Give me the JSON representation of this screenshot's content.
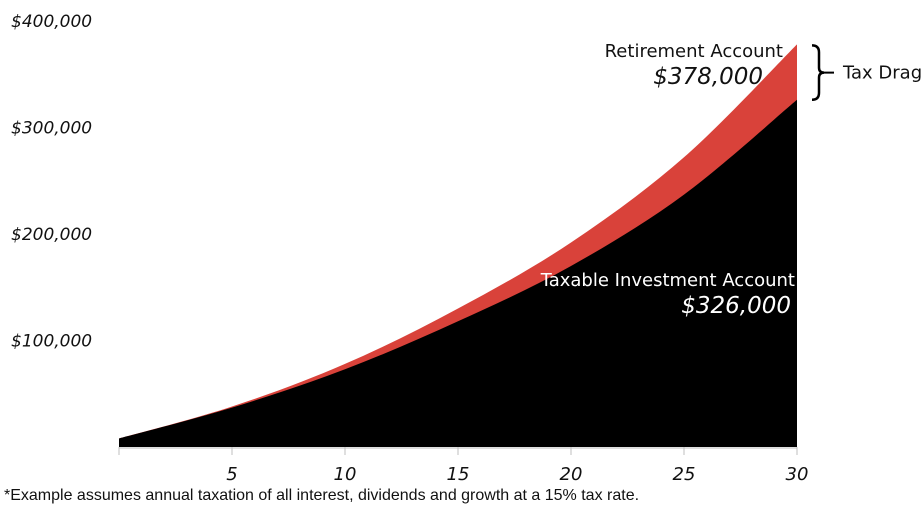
{
  "chart_data": {
    "type": "area",
    "xlim": [
      0,
      30
    ],
    "ylim": [
      0,
      400000
    ],
    "x_ticks": [
      5,
      10,
      15,
      20,
      25,
      30
    ],
    "y_ticks": [
      {
        "value": 100000,
        "label": "$100,000"
      },
      {
        "value": 200000,
        "label": "$200,000"
      },
      {
        "value": 300000,
        "label": "$300,000"
      },
      {
        "value": 400000,
        "label": "$400,000"
      }
    ],
    "x": [
      0,
      5,
      10,
      15,
      20,
      25,
      30
    ],
    "series": [
      {
        "name": "Retirement Account",
        "color": "#d9423a",
        "values": [
          8000,
          38000,
          78000,
          130000,
          192000,
          272000,
          378000
        ],
        "label_top": "Retirement Account",
        "label_value": "$378,000"
      },
      {
        "name": "Taxable Investment Account",
        "color": "#000000",
        "values": [
          8000,
          37000,
          73000,
          118000,
          170000,
          237000,
          326000
        ],
        "label_top": "Taxable Investment Account",
        "label_value": "$326,000"
      }
    ],
    "annotation": {
      "label": "Tax Drag"
    }
  },
  "footnote": "*Example assumes annual taxation of all interest, dividends and growth at a 15% tax rate."
}
